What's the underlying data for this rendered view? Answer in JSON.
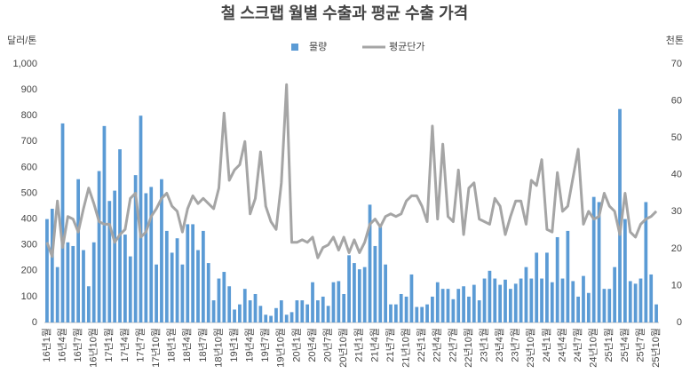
{
  "chart_data": {
    "type": "bar",
    "title": "철 스크랩 월별 수출과 평균 수출 가격",
    "y_label": "달러/톤",
    "y2_label": "천톤",
    "categories": [
      "16년1월",
      null,
      null,
      "16년4월",
      null,
      null,
      "16년7월",
      null,
      null,
      "16년10월",
      null,
      null,
      "17년1월",
      null,
      null,
      "17년4월",
      null,
      null,
      "17년7월",
      null,
      null,
      "17년10월",
      null,
      null,
      "18년1월",
      null,
      null,
      "18년4월",
      null,
      null,
      "18년7월",
      null,
      null,
      "18년10월",
      null,
      null,
      "19년1월",
      null,
      null,
      "19년4월",
      null,
      null,
      "19년7월",
      null,
      null,
      "19년10월",
      null,
      null,
      "20년1월",
      null,
      null,
      "20년4월",
      null,
      null,
      "20년7월",
      null,
      null,
      "20년10월",
      null,
      null,
      "21년1월",
      null,
      null,
      "21년4월",
      null,
      null,
      "21년7월",
      null,
      null,
      "21년10월",
      null,
      null,
      "22년1월",
      null,
      null,
      "22년4월",
      null,
      null,
      "22년7월",
      null,
      null,
      "22년10월",
      null,
      null,
      "23년1월",
      null,
      null,
      "23년4월",
      null,
      null,
      "23년7월",
      null,
      null,
      "23년10월",
      null,
      null,
      "24년1월",
      null,
      null,
      "24년4월",
      null,
      null,
      "24년7월",
      null,
      null,
      "24년10월",
      null,
      null,
      "25년1월",
      null,
      null,
      "25년4월",
      null,
      null,
      "25년7월",
      null,
      null,
      "25년10월"
    ],
    "series": [
      {
        "name": "물량",
        "type": "bar",
        "axis": "y2",
        "color": "#5b9bd5",
        "values": [
          28,
          30.8,
          15,
          53.9,
          21.7,
          20.7,
          38.8,
          19.6,
          9.8,
          21.7,
          41,
          53.2,
          32.9,
          35.7,
          46.9,
          23.8,
          17.9,
          39.9,
          56,
          35,
          36.7,
          15.7,
          38.8,
          24.8,
          18.9,
          22.8,
          15.7,
          26.6,
          26.6,
          19.6,
          24.8,
          16.1,
          6,
          11.9,
          13.7,
          9.8,
          3.5,
          4.9,
          9.1,
          6,
          7.7,
          4.5,
          2.1,
          1.8,
          3.9,
          6,
          2.1,
          2.8,
          6,
          6,
          4.9,
          10.9,
          6,
          7,
          4.5,
          10.9,
          11.2,
          7.7,
          18.2,
          16.1,
          14.4,
          15,
          31.9,
          20.7,
          25.9,
          15.7,
          4.9,
          4.9,
          7.7,
          7,
          13,
          4.2,
          4.2,
          4.9,
          7,
          10.9,
          9.1,
          9.1,
          6.3,
          9.1,
          9.8,
          7,
          10.2,
          6,
          11.9,
          14,
          11.9,
          10.2,
          11.6,
          9.1,
          10.5,
          11.9,
          15,
          11.9,
          18.9,
          11.9,
          18.9,
          10.9,
          23.1,
          11.9,
          24.8,
          11.2,
          7,
          12.6,
          8,
          34,
          32.6,
          9.1,
          9.1,
          15,
          57.8,
          28,
          11.2,
          10.5,
          11.9,
          32.6,
          13,
          4.9
        ]
      },
      {
        "name": "평균단가",
        "type": "line",
        "color": "#a5a5a5",
        "values": [
          310,
          255,
          470,
          290,
          410,
          400,
          350,
          440,
          520,
          460,
          390,
          380,
          380,
          310,
          340,
          360,
          480,
          500,
          330,
          350,
          410,
          440,
          480,
          500,
          450,
          430,
          350,
          440,
          490,
          460,
          480,
          460,
          440,
          520,
          810,
          550,
          590,
          610,
          700,
          420,
          480,
          660,
          450,
          390,
          360,
          540,
          920,
          310,
          310,
          320,
          310,
          330,
          250,
          290,
          300,
          330,
          280,
          330,
          270,
          320,
          270,
          310,
          380,
          400,
          370,
          410,
          420,
          410,
          420,
          470,
          490,
          490,
          450,
          390,
          760,
          400,
          690,
          410,
          390,
          590,
          340,
          520,
          540,
          400,
          390,
          380,
          480,
          450,
          340,
          410,
          470,
          470,
          380,
          550,
          530,
          630,
          360,
          350,
          580,
          430,
          450,
          560,
          670,
          380,
          430,
          400,
          410,
          500,
          450,
          430,
          340,
          500,
          350,
          330,
          380,
          400,
          410,
          430
        ]
      }
    ],
    "ylim": [
      0,
      1000
    ],
    "yticks": [
      0,
      100,
      200,
      300,
      400,
      500,
      600,
      700,
      800,
      900,
      {
        "value": 1000,
        "label": "1,000"
      }
    ],
    "y2lim": [
      0,
      70
    ],
    "y2ticks": [
      0,
      10,
      20,
      30,
      40,
      50,
      60,
      70
    ],
    "legend": "top",
    "grid": false
  }
}
